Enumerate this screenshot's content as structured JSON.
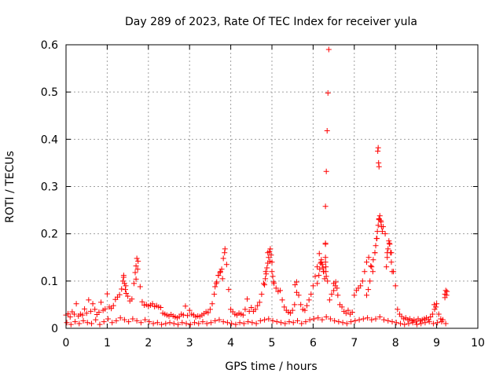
{
  "chart_data": {
    "type": "scatter",
    "title": "Day 289 of 2023, Rate Of TEC Index for receiver yula",
    "xlabel": "GPS time / hours",
    "ylabel": "ROTI / TECUs",
    "xlim": [
      0,
      10
    ],
    "ylim": [
      0,
      0.6
    ],
    "xticks": [
      "0",
      "1",
      "2",
      "3",
      "4",
      "5",
      "6",
      "7",
      "8",
      "9",
      "10"
    ],
    "yticks": [
      "0",
      "0.1",
      "0.2",
      "0.3",
      "0.4",
      "0.5",
      "0.6"
    ],
    "grid": true,
    "marker": "+",
    "color": "#ff0000",
    "series": [
      {
        "x": [
          0.0,
          0.05,
          0.1,
          0.15,
          0.2,
          0.25,
          0.3,
          0.35,
          0.4,
          0.45,
          0.5,
          0.55,
          0.6,
          0.65,
          0.7,
          0.75,
          0.8,
          0.85,
          0.9,
          0.95,
          1.0,
          1.05,
          1.1,
          1.15,
          1.2,
          1.25,
          1.3,
          1.35,
          1.4,
          1.45,
          1.5,
          1.55,
          1.6,
          1.65,
          1.7,
          1.75,
          1.8,
          1.85,
          1.9,
          1.95,
          2.0,
          2.05,
          2.1,
          2.15,
          2.2,
          2.25,
          2.3,
          2.35,
          2.4,
          2.45,
          2.5,
          2.55,
          2.6,
          2.65,
          2.7,
          2.75,
          2.8,
          2.85,
          2.9,
          2.95,
          3.0,
          3.05,
          3.1,
          3.15,
          3.2,
          3.25,
          3.3,
          3.35,
          3.4,
          3.45,
          3.5,
          3.55,
          3.6,
          3.65,
          3.7,
          3.75,
          3.8,
          3.85,
          3.9,
          3.95,
          4.0,
          4.05,
          4.1,
          4.15,
          4.2,
          4.25,
          4.3,
          4.35,
          4.4,
          4.45,
          4.5,
          4.55,
          4.6,
          4.65,
          4.7,
          4.75,
          4.8,
          4.85,
          4.9,
          4.95,
          5.0,
          5.05,
          5.1,
          5.15,
          5.2,
          5.25,
          5.3,
          5.35,
          5.4,
          5.45,
          5.5,
          5.55,
          5.6,
          5.65,
          5.7,
          5.75,
          5.8,
          5.85,
          5.9,
          5.95,
          6.0,
          6.05,
          6.1,
          6.15,
          6.2,
          6.25,
          6.3,
          6.35,
          6.4,
          6.45,
          6.5,
          6.55,
          6.6,
          6.65,
          6.7,
          6.75,
          6.8,
          6.85,
          6.9,
          6.95,
          7.0,
          7.05,
          7.1,
          7.15,
          7.2,
          7.25,
          7.3,
          7.35,
          7.4,
          7.45,
          7.5,
          7.55,
          7.6,
          7.65,
          7.7,
          7.75,
          7.8,
          7.85,
          7.9,
          7.95,
          8.0,
          8.05,
          8.1,
          8.15,
          8.2,
          8.25,
          8.3,
          8.35,
          8.4,
          8.45,
          8.5,
          8.55,
          8.6,
          8.65,
          8.7,
          8.75,
          8.8,
          8.85,
          8.9,
          8.95,
          9.0,
          9.05,
          9.1,
          9.15,
          9.2,
          9.25,
          0.02,
          0.12,
          0.22,
          0.32,
          0.42,
          0.52,
          0.62,
          0.72,
          0.82,
          0.92,
          1.02,
          1.12,
          1.22,
          1.32,
          1.42,
          1.52,
          1.62,
          1.72,
          1.82,
          1.92,
          2.02,
          2.12,
          2.22,
          2.32,
          2.42,
          2.52,
          2.62,
          2.72,
          2.82,
          2.92,
          3.02,
          3.12,
          3.22,
          3.32,
          3.42,
          3.52,
          3.62,
          3.72,
          3.82,
          3.92,
          4.02,
          4.12,
          4.22,
          4.32,
          4.42,
          4.52,
          4.62,
          4.72,
          4.82,
          4.92,
          5.02,
          5.12,
          5.22,
          5.32,
          5.42,
          5.52,
          5.62,
          5.72,
          5.82,
          5.92,
          6.02,
          6.12,
          6.22,
          6.32,
          6.42,
          6.52,
          6.62,
          6.72,
          6.82,
          6.92,
          7.02,
          7.12,
          7.22,
          7.32,
          7.42,
          7.52,
          7.62,
          7.72,
          7.82,
          7.92,
          8.02,
          8.12,
          8.22,
          8.32,
          8.42,
          8.52,
          8.62,
          8.72,
          8.82,
          8.92,
          9.02,
          9.12,
          9.22,
          1.38,
          1.4,
          1.42,
          1.44,
          1.46,
          1.68,
          1.7,
          1.72,
          1.74,
          3.62,
          3.66,
          3.7,
          3.74,
          3.78,
          3.82,
          3.86,
          4.82,
          4.84,
          4.86,
          4.88,
          4.9,
          4.92,
          4.94,
          4.96,
          4.98,
          5.0,
          5.02,
          5.04,
          5.56,
          5.6,
          6.1,
          6.14,
          6.16,
          6.18,
          6.2,
          6.22,
          6.24,
          6.26,
          6.28,
          6.3,
          6.32,
          6.34,
          6.36,
          6.38,
          6.3,
          6.3,
          6.3,
          6.31,
          6.31,
          6.32,
          6.5,
          6.54,
          6.58,
          7.3,
          7.34,
          7.38,
          7.42,
          7.46,
          7.5,
          7.52,
          7.54,
          7.56,
          7.58,
          7.6,
          7.62,
          7.64,
          7.66,
          7.68,
          7.57,
          7.58,
          7.59,
          7.6,
          7.78,
          7.8,
          7.82,
          7.84,
          7.86,
          7.88,
          7.9,
          7.92,
          8.94,
          8.98,
          9.2,
          9.22,
          9.24
        ],
        "y": [
          0.028,
          0.031,
          0.024,
          0.035,
          0.03,
          0.052,
          0.026,
          0.03,
          0.028,
          0.041,
          0.032,
          0.06,
          0.036,
          0.052,
          0.04,
          0.029,
          0.034,
          0.055,
          0.038,
          0.041,
          0.073,
          0.045,
          0.042,
          0.048,
          0.061,
          0.066,
          0.071,
          0.083,
          0.112,
          0.09,
          0.068,
          0.058,
          0.062,
          0.095,
          0.104,
          0.142,
          0.088,
          0.056,
          0.049,
          0.05,
          0.047,
          0.049,
          0.052,
          0.046,
          0.048,
          0.045,
          0.044,
          0.032,
          0.03,
          0.028,
          0.026,
          0.029,
          0.026,
          0.024,
          0.022,
          0.025,
          0.03,
          0.028,
          0.047,
          0.027,
          0.038,
          0.03,
          0.028,
          0.024,
          0.026,
          0.025,
          0.028,
          0.031,
          0.035,
          0.033,
          0.04,
          0.052,
          0.072,
          0.095,
          0.112,
          0.12,
          0.105,
          0.16,
          0.135,
          0.082,
          0.04,
          0.035,
          0.03,
          0.028,
          0.032,
          0.03,
          0.028,
          0.04,
          0.062,
          0.036,
          0.044,
          0.036,
          0.04,
          0.048,
          0.055,
          0.072,
          0.095,
          0.12,
          0.16,
          0.142,
          0.12,
          0.095,
          0.085,
          0.078,
          0.08,
          0.06,
          0.045,
          0.038,
          0.034,
          0.032,
          0.038,
          0.05,
          0.098,
          0.07,
          0.05,
          0.04,
          0.038,
          0.048,
          0.06,
          0.072,
          0.09,
          0.11,
          0.13,
          0.158,
          0.14,
          0.12,
          0.178,
          0.1,
          0.06,
          0.072,
          0.095,
          0.098,
          0.07,
          0.05,
          0.045,
          0.036,
          0.032,
          0.038,
          0.03,
          0.034,
          0.07,
          0.08,
          0.085,
          0.09,
          0.1,
          0.12,
          0.14,
          0.15,
          0.132,
          0.12,
          0.16,
          0.19,
          0.23,
          0.225,
          0.215,
          0.2,
          0.16,
          0.18,
          0.16,
          0.12,
          0.09,
          0.04,
          0.03,
          0.025,
          0.02,
          0.022,
          0.018,
          0.02,
          0.016,
          0.018,
          0.015,
          0.02,
          0.016,
          0.018,
          0.02,
          0.022,
          0.018,
          0.024,
          0.03,
          0.04,
          0.052,
          0.03,
          0.02,
          0.018,
          0.072,
          0.078,
          0.012,
          0.008,
          0.014,
          0.01,
          0.016,
          0.012,
          0.01,
          0.018,
          0.008,
          0.014,
          0.02,
          0.012,
          0.016,
          0.022,
          0.018,
          0.014,
          0.02,
          0.016,
          0.012,
          0.018,
          0.014,
          0.01,
          0.012,
          0.008,
          0.01,
          0.012,
          0.01,
          0.008,
          0.012,
          0.01,
          0.008,
          0.012,
          0.01,
          0.014,
          0.01,
          0.012,
          0.016,
          0.018,
          0.014,
          0.012,
          0.01,
          0.008,
          0.012,
          0.01,
          0.014,
          0.012,
          0.01,
          0.016,
          0.018,
          0.02,
          0.016,
          0.014,
          0.012,
          0.01,
          0.014,
          0.012,
          0.016,
          0.01,
          0.014,
          0.018,
          0.02,
          0.022,
          0.018,
          0.024,
          0.02,
          0.016,
          0.014,
          0.012,
          0.01,
          0.014,
          0.016,
          0.018,
          0.02,
          0.022,
          0.018,
          0.02,
          0.024,
          0.018,
          0.016,
          0.014,
          0.012,
          0.01,
          0.008,
          0.01,
          0.012,
          0.008,
          0.01,
          0.012,
          0.014,
          0.01,
          0.012,
          0.014,
          0.01,
          0.1,
          0.108,
          0.095,
          0.082,
          0.074,
          0.118,
          0.132,
          0.148,
          0.125,
          0.088,
          0.098,
          0.112,
          0.118,
          0.125,
          0.148,
          0.168,
          0.092,
          0.105,
          0.115,
          0.128,
          0.138,
          0.15,
          0.162,
          0.168,
          0.155,
          0.14,
          0.11,
          0.098,
          0.092,
          0.076,
          0.095,
          0.112,
          0.125,
          0.138,
          0.145,
          0.135,
          0.128,
          0.12,
          0.105,
          0.258,
          0.332,
          0.418,
          0.498,
          0.59,
          0.18,
          0.15,
          0.14,
          0.13,
          0.12,
          0.11,
          0.08,
          0.09,
          0.085,
          0.07,
          0.082,
          0.1,
          0.13,
          0.145,
          0.16,
          0.175,
          0.19,
          0.205,
          0.218,
          0.232,
          0.238,
          0.228,
          0.215,
          0.205,
          0.375,
          0.382,
          0.35,
          0.342,
          0.13,
          0.15,
          0.168,
          0.185,
          0.178,
          0.16,
          0.14,
          0.12,
          0.05,
          0.045,
          0.065,
          0.08,
          0.07
        ]
      }
    ]
  }
}
